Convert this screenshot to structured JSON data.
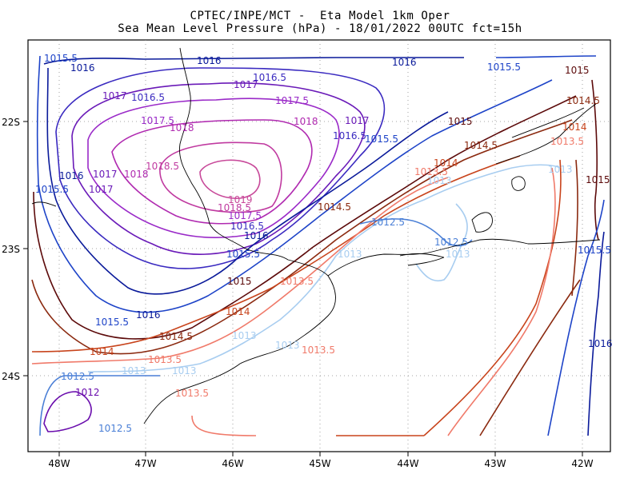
{
  "title": {
    "line1": "CPTEC/INPE/MCT -  Eta Model 1km Oper",
    "line2": "Sea Mean Level Pressure (hPa) - 18/01/2022 00UTC fct=15h"
  },
  "axes": {
    "x_ticks": [
      "48W",
      "47W",
      "46W",
      "45W",
      "44W",
      "43W",
      "42W"
    ],
    "y_ticks": [
      "22S",
      "23S",
      "24S"
    ]
  },
  "colors": {
    "c1012": "#6a0dad",
    "c1012_5": "#4a7fd6",
    "c1013": "#a8cdf0",
    "c1013_5": "#f07a6a",
    "c1014": "#c8441c",
    "c1014_5": "#8b2a10",
    "c1015": "#5c0a0a",
    "c1015_5": "#1e44c8",
    "c1016": "#0a1a9a",
    "c1016_5": "#3a2ac0",
    "c1017": "#6a1ab8",
    "c1017_5": "#9a2ac8",
    "c1018": "#b02ab0",
    "c1018_5": "#c03aa0",
    "c1019": "#c84a9a",
    "coast": "#000000",
    "grid": "#888888"
  },
  "contour_labels": [
    {
      "id": "l1",
      "text": "1015.5",
      "color": "c1015_5"
    },
    {
      "id": "l2",
      "text": "1016",
      "color": "c1016"
    },
    {
      "id": "l3",
      "text": "1016",
      "color": "c1016"
    },
    {
      "id": "l4",
      "text": "1016",
      "color": "c1016"
    },
    {
      "id": "l5",
      "text": "1016.5",
      "color": "c1016_5"
    },
    {
      "id": "l6",
      "text": "1017",
      "color": "c1017"
    },
    {
      "id": "l7",
      "text": "1017",
      "color": "c1017"
    },
    {
      "id": "l8",
      "text": "1016.5",
      "color": "c1016_5"
    },
    {
      "id": "l9",
      "text": "1017.5",
      "color": "c1017_5"
    },
    {
      "id": "l10",
      "text": "1017.5",
      "color": "c1017_5"
    },
    {
      "id": "l11",
      "text": "1018",
      "color": "c1018"
    },
    {
      "id": "l12",
      "text": "1018",
      "color": "c1018"
    },
    {
      "id": "l13",
      "text": "1017",
      "color": "c1017"
    },
    {
      "id": "l14",
      "text": "1016.5",
      "color": "c1016_5"
    },
    {
      "id": "l15",
      "text": "1015.5",
      "color": "c1015_5"
    },
    {
      "id": "l16",
      "text": "1015.5",
      "color": "c1015_5"
    },
    {
      "id": "l17",
      "text": "1015",
      "color": "c1015"
    },
    {
      "id": "l18",
      "text": "1014.5",
      "color": "c1014_5"
    },
    {
      "id": "l19",
      "text": "1015",
      "color": "c1015"
    },
    {
      "id": "l20",
      "text": "1014.5",
      "color": "c1014_5"
    },
    {
      "id": "l21",
      "text": "1014",
      "color": "c1014"
    },
    {
      "id": "l22",
      "text": "1013.5",
      "color": "c1013_5"
    },
    {
      "id": "l23",
      "text": "1014",
      "color": "c1014"
    },
    {
      "id": "l24",
      "text": "1013.5",
      "color": "c1013_5"
    },
    {
      "id": "l25",
      "text": "1013",
      "color": "c1013"
    },
    {
      "id": "l26",
      "text": "1013",
      "color": "c1013"
    },
    {
      "id": "l27",
      "text": "1015",
      "color": "c1015"
    },
    {
      "id": "l28",
      "text": "1018.5",
      "color": "c1018_5"
    },
    {
      "id": "l29",
      "text": "1016",
      "color": "c1016"
    },
    {
      "id": "l30",
      "text": "1017",
      "color": "c1017"
    },
    {
      "id": "l31",
      "text": "1018",
      "color": "c1018"
    },
    {
      "id": "l32",
      "text": "1015.5",
      "color": "c1015_5"
    },
    {
      "id": "l33",
      "text": "1017",
      "color": "c1017"
    },
    {
      "id": "l34",
      "text": "1019",
      "color": "c1019"
    },
    {
      "id": "l35",
      "text": "1018.5",
      "color": "c1018_5"
    },
    {
      "id": "l36",
      "text": "1017.5",
      "color": "c1017_5"
    },
    {
      "id": "l37",
      "text": "1016.5",
      "color": "c1016_5"
    },
    {
      "id": "l38",
      "text": "1016",
      "color": "c1016"
    },
    {
      "id": "l39",
      "text": "1015.5",
      "color": "c1015_5"
    },
    {
      "id": "l40",
      "text": "1014.5",
      "color": "c1014_5"
    },
    {
      "id": "l41",
      "text": "1015",
      "color": "c1015"
    },
    {
      "id": "l42",
      "text": "1012.5",
      "color": "c1012_5"
    },
    {
      "id": "l43",
      "text": "1013",
      "color": "c1013"
    },
    {
      "id": "l44",
      "text": "1012.5",
      "color": "c1012_5"
    },
    {
      "id": "l45",
      "text": "1013",
      "color": "c1013"
    },
    {
      "id": "l46",
      "text": "1013.5",
      "color": "c1013_5"
    },
    {
      "id": "l47",
      "text": "1014",
      "color": "c1014"
    },
    {
      "id": "l48",
      "text": "1016",
      "color": "c1016"
    },
    {
      "id": "l49",
      "text": "1015.5",
      "color": "c1015_5"
    },
    {
      "id": "l50",
      "text": "1014.5",
      "color": "c1014_5"
    },
    {
      "id": "l51",
      "text": "1014",
      "color": "c1014"
    },
    {
      "id": "l52",
      "text": "1013.5",
      "color": "c1013_5"
    },
    {
      "id": "l53",
      "text": "1013",
      "color": "c1013"
    },
    {
      "id": "l54",
      "text": "1013",
      "color": "c1013"
    },
    {
      "id": "l55",
      "text": "1013.5",
      "color": "c1013_5"
    },
    {
      "id": "l56",
      "text": "1012.5",
      "color": "c1012_5"
    },
    {
      "id": "l57",
      "text": "1013",
      "color": "c1013"
    },
    {
      "id": "l58",
      "text": "1013",
      "color": "c1013"
    },
    {
      "id": "l59",
      "text": "1013.5",
      "color": "c1013_5"
    },
    {
      "id": "l60",
      "text": "1012",
      "color": "c1012"
    },
    {
      "id": "l61",
      "text": "1012.5",
      "color": "c1012_5"
    },
    {
      "id": "l62",
      "text": "1015.5",
      "color": "c1015_5"
    },
    {
      "id": "l63",
      "text": "1016",
      "color": "c1016"
    }
  ]
}
